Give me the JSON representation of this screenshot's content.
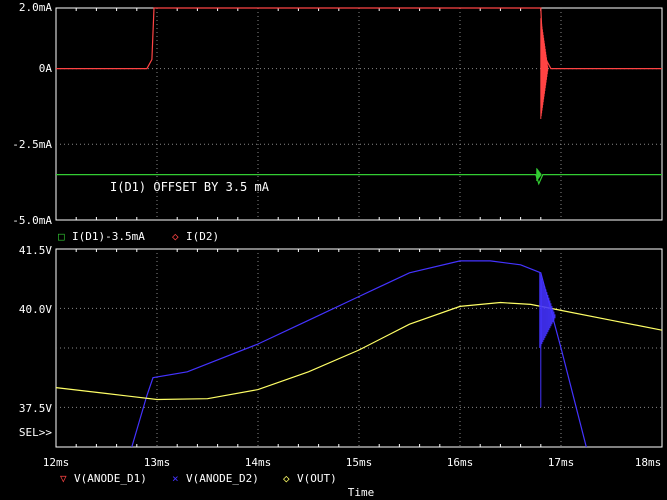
{
  "window": {
    "background": "#000000"
  },
  "top_plot": {
    "y_ticks": [
      "2.0mA",
      "0A",
      "-2.5mA",
      "-5.0mA"
    ],
    "annotation": "I(D1) OFFSET BY   3.5 mA",
    "legend": [
      {
        "marker": "□",
        "label": "I(D1)-3.5mA",
        "color": "#33cc33"
      },
      {
        "marker": "◇",
        "label": "I(D2)",
        "color": "#ff4444"
      }
    ]
  },
  "bottom_plot": {
    "y_ticks": [
      "41.5V",
      "40.0V",
      "37.5V"
    ],
    "sel_label": "SEL>>",
    "legend": [
      {
        "marker": "▽",
        "label": "V(ANODE_D1)",
        "color": "#ff4444"
      },
      {
        "marker": "×",
        "label": "V(ANODE_D2)",
        "color": "#4433ff"
      },
      {
        "marker": "◇",
        "label": "V(OUT)",
        "color": "#ffff66"
      }
    ]
  },
  "x_axis": {
    "ticks": [
      "12ms",
      "13ms",
      "14ms",
      "15ms",
      "16ms",
      "17ms",
      "18ms"
    ],
    "label": "Time"
  },
  "chart_data": [
    {
      "type": "line",
      "xlabel": "Time",
      "xlim": [
        12,
        18
      ],
      "ylim": [
        -5.0,
        2.0
      ],
      "series": [
        {
          "name": "I(D1)-3.5mA",
          "color": "#33cc33",
          "x": [
            12,
            16.75,
            16.78,
            16.82,
            18
          ],
          "y": [
            -3.5,
            -3.5,
            -3.8,
            -3.5,
            -3.5
          ]
        },
        {
          "name": "I(D2)",
          "color": "#ff4444",
          "x": [
            12,
            12.9,
            12.95,
            12.97,
            16.8,
            16.82,
            16.9,
            18
          ],
          "y": [
            0,
            0,
            0.3,
            2.0,
            2.0,
            0.5,
            0,
            0
          ]
        }
      ]
    },
    {
      "type": "line",
      "xlabel": "Time",
      "xlim": [
        12,
        18
      ],
      "ylim": [
        36.5,
        41.5
      ],
      "series": [
        {
          "name": "V(ANODE_D2)",
          "color": "#4433ff",
          "x": [
            12.75,
            12.9,
            12.96,
            13.3,
            14.0,
            14.5,
            15.0,
            15.5,
            16.0,
            16.3,
            16.6,
            16.8,
            17.0,
            17.25
          ],
          "y": [
            36.5,
            37.8,
            38.25,
            38.4,
            39.1,
            39.7,
            40.3,
            40.9,
            41.2,
            41.2,
            41.1,
            40.9,
            39.0,
            36.5
          ]
        },
        {
          "name": "V(OUT)",
          "color": "#ffff66",
          "x": [
            12.0,
            12.5,
            13.0,
            13.5,
            14.0,
            14.5,
            15.0,
            15.5,
            16.0,
            16.4,
            16.7,
            17.0,
            17.5,
            18.0
          ],
          "y": [
            38.0,
            37.85,
            37.7,
            37.72,
            37.95,
            38.4,
            38.95,
            39.6,
            40.05,
            40.15,
            40.1,
            39.95,
            39.7,
            39.45
          ]
        }
      ]
    }
  ]
}
